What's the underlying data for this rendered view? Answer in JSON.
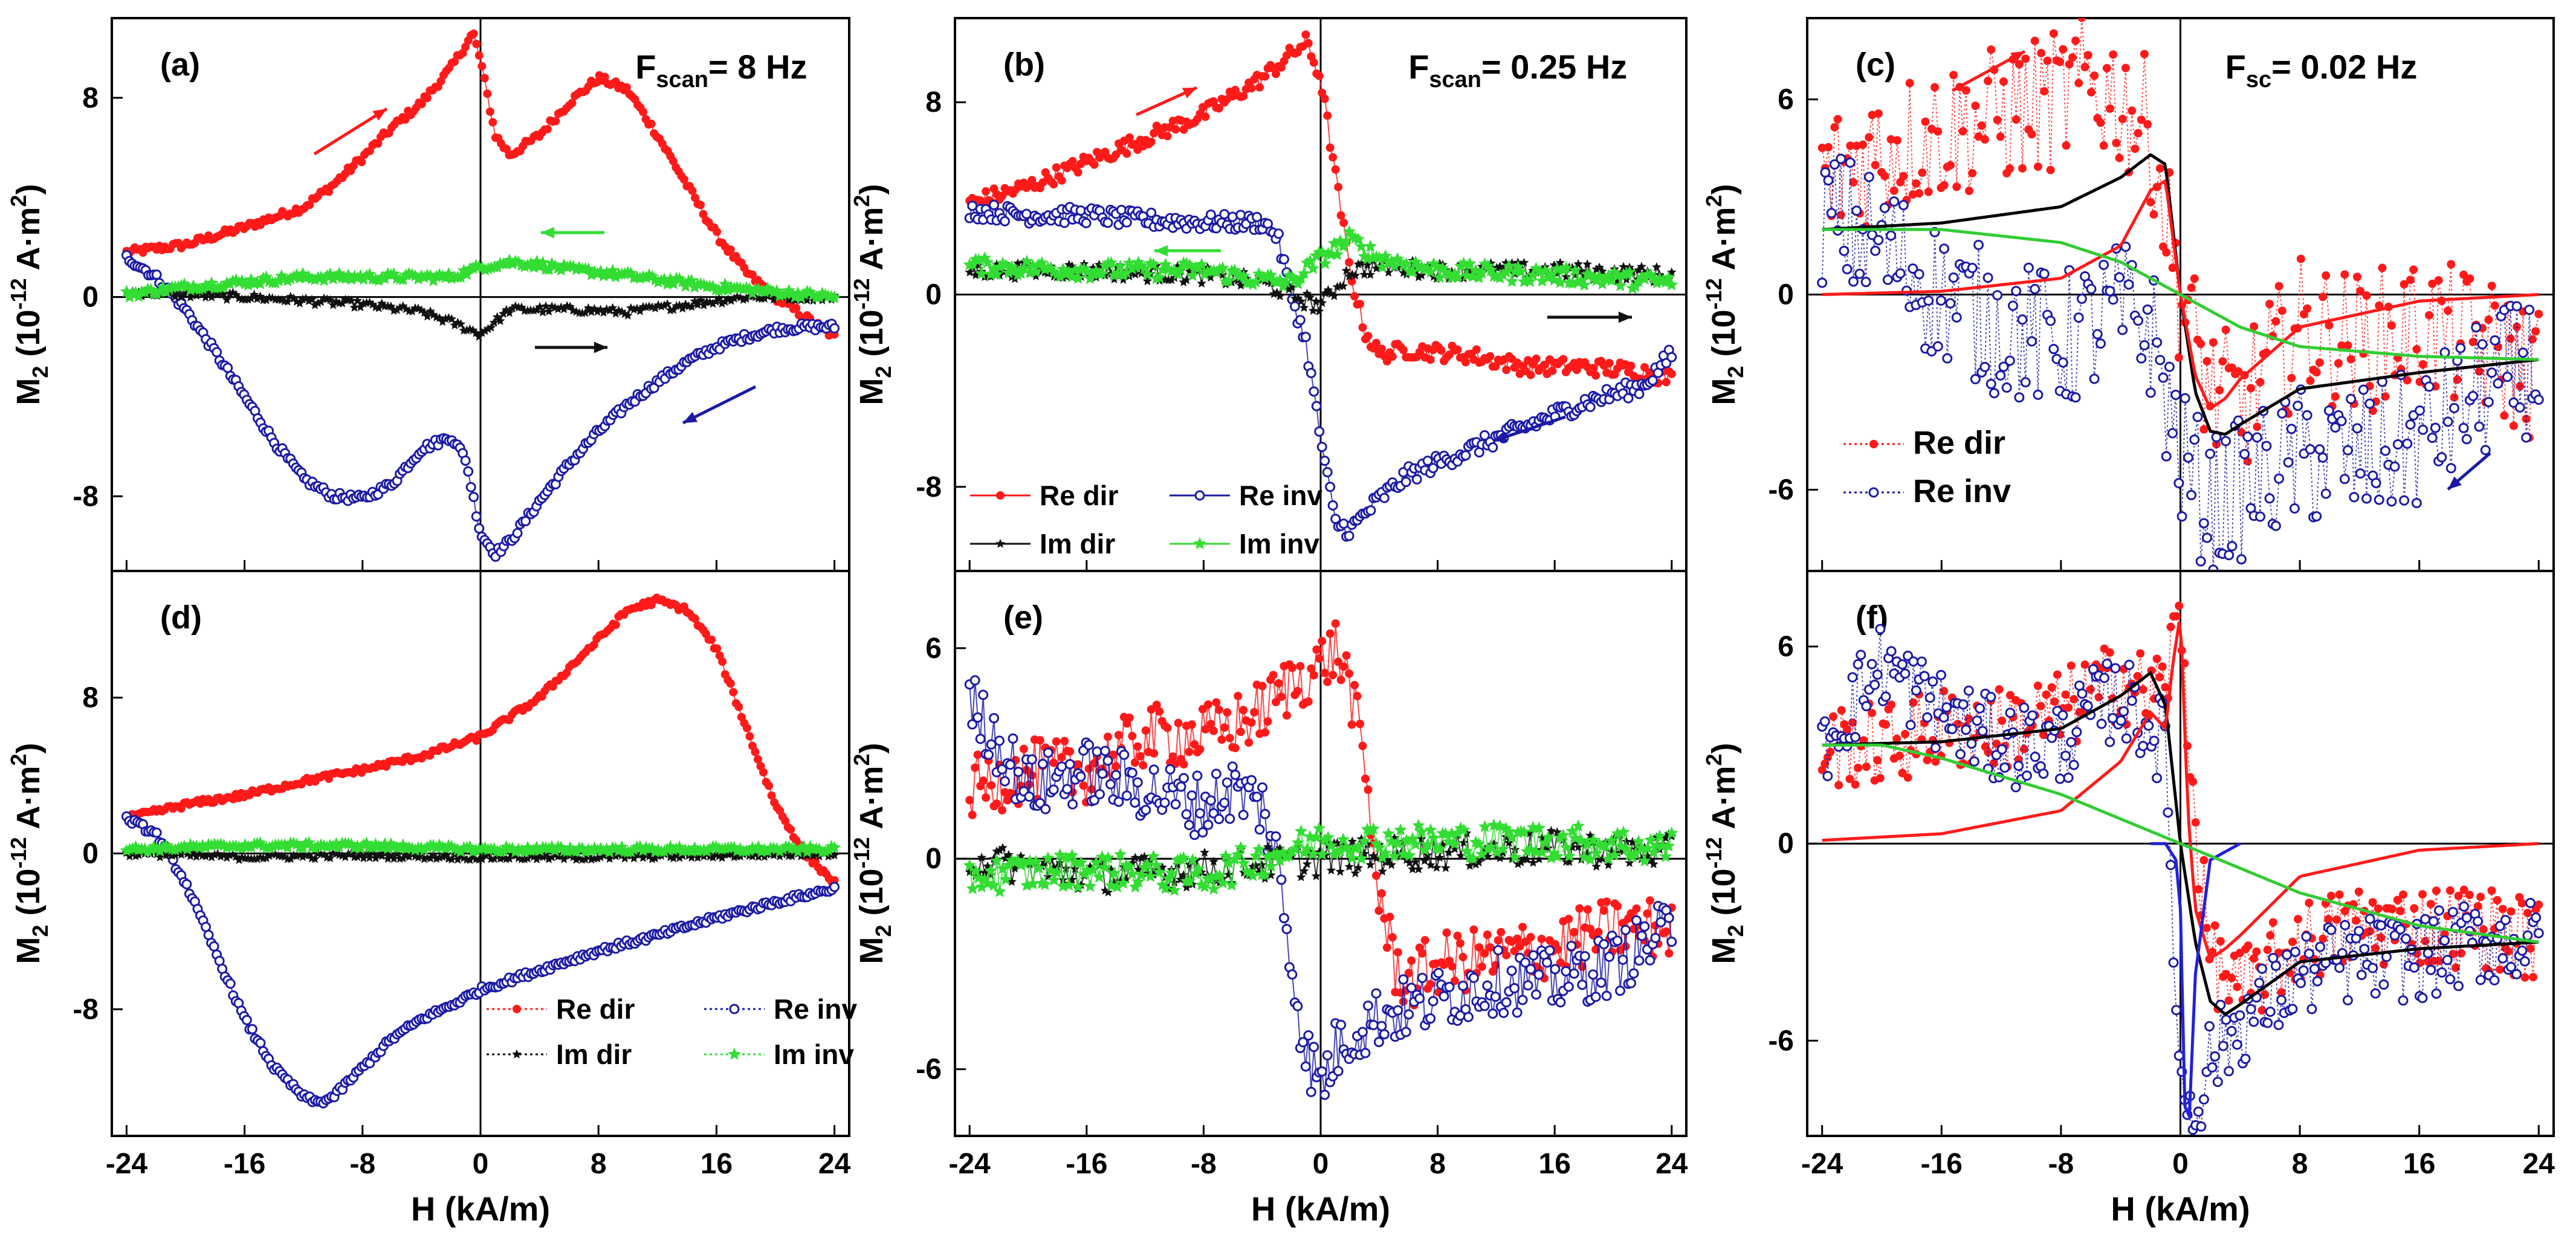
{
  "figure": {
    "xlabel": "H  (kA/m)",
    "x_ticks": [
      "-24",
      "-16",
      "-8",
      "0",
      "8",
      "16",
      "24"
    ],
    "panels": [
      {
        "id": "a",
        "label": "(a)",
        "freq_main": "F",
        "freq_sub": "scan",
        "freq_value": "= 8 Hz"
      },
      {
        "id": "b",
        "label": "(b)",
        "freq_main": "F",
        "freq_sub": "scan",
        "freq_value": "= 0.25 Hz"
      },
      {
        "id": "c",
        "label": "(c)",
        "freq_main": "F",
        "freq_sub": "sc",
        "freq_value": "= 0.02 Hz"
      },
      {
        "id": "d",
        "label": "(d)"
      },
      {
        "id": "e",
        "label": "(e)"
      },
      {
        "id": "f",
        "label": "(f)"
      }
    ],
    "ylabel_main": "M",
    "ylabel_sub": "2",
    "ylabel_unit_open": "(10",
    "ylabel_unit_exp": "-12",
    "ylabel_unit_close": " A·m",
    "ylabel_unit_sq": "2",
    "ylabel_unit_paren": ")",
    "legend_labels": {
      "re_dir": "Re dir",
      "re_inv": "Re inv",
      "im_dir": "Im dir",
      "im_inv": "Im inv"
    }
  },
  "colors": {
    "re_dir": "#ff1a1a",
    "re_inv": "#1a1aa6",
    "im_dir": "#111111",
    "im_inv": "#33dd33",
    "fit_black": "#000000",
    "fit_green": "#33cc33"
  },
  "chart_data": [
    {
      "panel": "a",
      "type": "scatter",
      "title": "F_scan = 8 Hz",
      "xlabel": "H (kA/m)",
      "ylabel": "M2 (10^-12 A·m^2)",
      "xlim": [
        -25,
        25
      ],
      "ylim": [
        -11,
        11.2
      ],
      "yticks": [
        -8,
        0,
        8
      ],
      "series": [
        {
          "name": "Re dir",
          "x": [
            -24,
            -20,
            -16,
            -12,
            -10,
            -8,
            -6,
            -4,
            -2,
            -0.5,
            0,
            1,
            2,
            4,
            6,
            8,
            10,
            12,
            14,
            16,
            18,
            20,
            22,
            24
          ],
          "y": [
            1.8,
            2.1,
            2.8,
            3.6,
            4.5,
            5.6,
            6.8,
            7.8,
            9.2,
            10.6,
            9.5,
            6.5,
            5.7,
            6.5,
            7.8,
            8.8,
            8.3,
            6.5,
            4.5,
            2.5,
            1.0,
            0.0,
            -0.8,
            -1.6
          ]
        },
        {
          "name": "Re inv",
          "x": [
            -24,
            -22,
            -20,
            -18,
            -16,
            -14,
            -12,
            -10,
            -8,
            -6,
            -4,
            -2,
            -1,
            0,
            1,
            2,
            4,
            6,
            8,
            10,
            12,
            14,
            16,
            18,
            20,
            22,
            24
          ],
          "y": [
            1.6,
            0.8,
            -0.5,
            -2.2,
            -4.0,
            -5.8,
            -7.3,
            -8.0,
            -8.1,
            -7.5,
            -6.1,
            -5.6,
            -6.5,
            -9.5,
            -10.3,
            -9.8,
            -8.2,
            -6.7,
            -5.4,
            -4.3,
            -3.4,
            -2.6,
            -2.0,
            -1.6,
            -1.3,
            -1.2,
            -1.2
          ]
        },
        {
          "name": "Im dir",
          "x": [
            -24,
            -16,
            -8,
            -4,
            -2,
            0,
            2,
            6,
            10,
            14,
            18,
            22,
            24
          ],
          "y": [
            0.2,
            0.0,
            -0.3,
            -0.6,
            -1.0,
            -1.5,
            -0.5,
            -0.5,
            -0.6,
            -0.3,
            0.0,
            0.0,
            0.0
          ]
        },
        {
          "name": "Im inv",
          "x": [
            -24,
            -20,
            -16,
            -12,
            -8,
            -4,
            -2,
            0,
            2,
            4,
            6,
            8,
            12,
            16,
            20,
            24
          ],
          "y": [
            0.1,
            0.4,
            0.6,
            0.8,
            0.8,
            0.8,
            0.8,
            1.2,
            1.4,
            1.3,
            1.1,
            1.0,
            0.7,
            0.4,
            0.2,
            0.0
          ]
        }
      ],
      "arrows": [
        "dir: up-right, red",
        "inv: left, green",
        "dir: right, black",
        "inv: down-left, blue"
      ]
    },
    {
      "panel": "b",
      "type": "scatter",
      "title": "F_scan = 0.25 Hz",
      "xlabel": "H (kA/m)",
      "ylabel": "M2 (10^-12 A·m^2)",
      "xlim": [
        -25,
        25
      ],
      "ylim": [
        -11.5,
        11.5
      ],
      "yticks": [
        -8,
        0,
        8
      ],
      "legend": [
        "Re dir",
        "Re inv",
        "Im dir",
        "Im inv"
      ],
      "series": [
        {
          "name": "Re dir",
          "x": [
            -24,
            -20,
            -16,
            -12,
            -8,
            -4,
            -2,
            -1,
            0,
            1,
            2,
            3,
            4,
            6,
            10,
            14,
            18,
            22,
            24
          ],
          "y": [
            3.8,
            4.5,
            5.5,
            6.5,
            7.5,
            9.0,
            10.0,
            10.5,
            9.0,
            5.0,
            1.0,
            -1.5,
            -2.5,
            -2.3,
            -2.5,
            -3.0,
            -3.0,
            -3.2,
            -3.5
          ]
        },
        {
          "name": "Re inv",
          "x": [
            -24,
            -20,
            -16,
            -12,
            -8,
            -6,
            -4,
            -3,
            -2,
            -1,
            0,
            1,
            2,
            4,
            6,
            10,
            14,
            18,
            22,
            24
          ],
          "y": [
            3.5,
            3.3,
            3.3,
            3.1,
            3.0,
            3.0,
            3.0,
            2.5,
            0.0,
            -2.0,
            -6.0,
            -9.5,
            -9.8,
            -8.5,
            -7.5,
            -6.5,
            -5.5,
            -4.5,
            -3.8,
            -2.5
          ]
        },
        {
          "name": "Im dir",
          "x": [
            -24,
            -16,
            -8,
            -4,
            -2,
            0,
            2,
            4,
            8,
            16,
            24
          ],
          "y": [
            1.0,
            1.0,
            0.8,
            0.5,
            0.0,
            -0.5,
            1.0,
            1.2,
            1.0,
            1.0,
            0.8
          ]
        },
        {
          "name": "Im inv",
          "x": [
            -24,
            -16,
            -8,
            -4,
            -2,
            0,
            2,
            4,
            8,
            16,
            24
          ],
          "y": [
            1.2,
            1.0,
            1.0,
            0.6,
            0.5,
            1.5,
            2.3,
            1.5,
            1.0,
            0.8,
            0.5
          ]
        }
      ]
    },
    {
      "panel": "c",
      "type": "scatter",
      "title": "F_sc = 0.02 Hz",
      "xlabel": "H (kA/m)",
      "ylabel": "M2 (10^-12 A·m^2)",
      "xlim": [
        -25,
        25
      ],
      "ylim": [
        -8.5,
        8.5
      ],
      "yticks": [
        -6,
        0,
        6
      ],
      "legend": [
        "Re dir",
        "Re inv"
      ],
      "series": [
        {
          "name": "Re dir",
          "x": [
            -24,
            -20,
            -16,
            -12,
            -8,
            -6,
            -4,
            -2,
            0,
            2,
            4,
            8,
            12,
            16,
            20,
            24
          ],
          "y": [
            3.5,
            4.5,
            5.0,
            5.5,
            6.0,
            6.5,
            6.0,
            5.0,
            0.0,
            -3.0,
            -3.5,
            -1.0,
            -1.5,
            -1.0,
            -1.5,
            -2.5
          ]
        },
        {
          "name": "Re inv",
          "x": [
            -24,
            -20,
            -16,
            -12,
            -8,
            -6,
            -4,
            -2,
            0,
            2,
            4,
            8,
            12,
            16,
            20,
            24
          ],
          "y": [
            2.5,
            1.5,
            0.0,
            -1.0,
            -1.5,
            -1.0,
            -0.5,
            -1.0,
            -5.0,
            -6.5,
            -6.0,
            -5.0,
            -5.0,
            -4.5,
            -3.0,
            -2.0
          ]
        }
      ],
      "fits": [
        {
          "name": "fit total",
          "x": [
            -24,
            -16,
            -8,
            -4,
            -2,
            -1,
            0,
            1,
            2,
            3,
            4,
            8,
            16,
            24
          ],
          "y": [
            2.0,
            2.2,
            2.7,
            3.6,
            4.3,
            4.0,
            0.0,
            -3.0,
            -4.2,
            -4.3,
            -4.0,
            -2.9,
            -2.4,
            -2.0
          ]
        },
        {
          "name": "fit red",
          "x": [
            -24,
            -16,
            -8,
            -4,
            -2,
            -1,
            0,
            1,
            2,
            3,
            4,
            8,
            16,
            24
          ],
          "y": [
            0.0,
            0.1,
            0.5,
            1.5,
            3.2,
            3.5,
            0.0,
            -2.5,
            -3.5,
            -3.2,
            -2.6,
            -1.0,
            -0.2,
            0.0
          ]
        },
        {
          "name": "fit green",
          "x": [
            -24,
            -16,
            -8,
            -4,
            0,
            4,
            8,
            16,
            24
          ],
          "y": [
            2.0,
            2.0,
            1.6,
            1.0,
            0.0,
            -1.0,
            -1.6,
            -1.9,
            -2.0
          ]
        }
      ]
    },
    {
      "panel": "d",
      "type": "scatter",
      "xlabel": "H (kA/m)",
      "ylabel": "M2 (10^-12 A·m^2)",
      "xlim": [
        -25,
        25
      ],
      "ylim": [
        -14.5,
        14.5
      ],
      "yticks": [
        -8,
        0,
        8
      ],
      "legend": [
        "Re dir",
        "Re inv",
        "Im dir",
        "Im inv"
      ],
      "series": [
        {
          "name": "Re dir",
          "x": [
            -24,
            -20,
            -16,
            -12,
            -8,
            -4,
            0,
            4,
            8,
            10,
            12,
            14,
            16,
            18,
            20,
            22,
            24
          ],
          "y": [
            1.8,
            2.5,
            3.0,
            3.7,
            4.3,
            5.0,
            6.0,
            8.0,
            11.0,
            12.5,
            13.0,
            12.5,
            10.5,
            6.5,
            2.5,
            0.0,
            -1.5
          ]
        },
        {
          "name": "Re inv",
          "x": [
            -24,
            -22,
            -20,
            -18,
            -16,
            -14,
            -12,
            -11,
            -10,
            -8,
            -6,
            -4,
            -2,
            0,
            4,
            8,
            12,
            16,
            20,
            24
          ],
          "y": [
            1.8,
            1.0,
            -1.5,
            -5.0,
            -8.5,
            -11.0,
            -12.5,
            -12.8,
            -12.5,
            -11.0,
            -9.5,
            -8.5,
            -7.8,
            -7.0,
            -6.0,
            -5.0,
            -4.2,
            -3.3,
            -2.5,
            -1.8
          ]
        },
        {
          "name": "Im dir",
          "x": [
            -24,
            -16,
            -8,
            0,
            8,
            16,
            24
          ],
          "y": [
            0.0,
            -0.2,
            -0.1,
            -0.2,
            -0.2,
            -0.1,
            0.0
          ]
        },
        {
          "name": "Im inv",
          "x": [
            -24,
            -16,
            -8,
            0,
            8,
            16,
            24
          ],
          "y": [
            0.2,
            0.4,
            0.4,
            0.2,
            0.2,
            0.2,
            0.2
          ]
        }
      ]
    },
    {
      "panel": "e",
      "type": "scatter",
      "xlabel": "H (kA/m)",
      "ylabel": "M2 (10^-12 A·m^2)",
      "xlim": [
        -25,
        25
      ],
      "ylim": [
        -7.9,
        8.2
      ],
      "yticks": [
        -6,
        0,
        6
      ],
      "series": [
        {
          "name": "Re dir",
          "x": [
            -24,
            -20,
            -16,
            -12,
            -8,
            -6,
            -4,
            -2,
            0,
            1,
            2,
            3,
            4,
            5,
            6,
            8,
            12,
            16,
            20,
            24
          ],
          "y": [
            2.0,
            2.5,
            2.5,
            3.5,
            3.5,
            3.8,
            4.2,
            5.0,
            5.5,
            6.0,
            5.0,
            2.5,
            -1.0,
            -3.0,
            -3.5,
            -3.0,
            -2.8,
            -2.5,
            -2.0,
            -2.0
          ]
        },
        {
          "name": "Re inv",
          "x": [
            -24,
            -20,
            -16,
            -12,
            -8,
            -6,
            -4,
            -3,
            -2,
            -1,
            0,
            1,
            2,
            4,
            8,
            12,
            16,
            20,
            24
          ],
          "y": [
            4.5,
            2.0,
            2.5,
            2.0,
            1.5,
            2.0,
            1.5,
            0.0,
            -3.0,
            -5.5,
            -6.5,
            -5.5,
            -5.0,
            -4.5,
            -4.0,
            -3.5,
            -3.5,
            -3.0,
            -2.0
          ]
        },
        {
          "name": "Im dir",
          "x": [
            -24,
            -16,
            -8,
            0,
            8,
            16,
            24
          ],
          "y": [
            0.0,
            -0.5,
            -0.3,
            0.0,
            0.2,
            0.3,
            0.2
          ]
        },
        {
          "name": "Im inv",
          "x": [
            -24,
            -16,
            -8,
            0,
            8,
            16,
            24
          ],
          "y": [
            -0.5,
            -0.3,
            -0.5,
            0.5,
            0.5,
            0.5,
            0.3
          ]
        }
      ]
    },
    {
      "panel": "f",
      "type": "scatter",
      "xlabel": "H (kA/m)",
      "ylabel": "M2 (10^-12 A·m^2)",
      "xlim": [
        -25,
        25
      ],
      "ylim": [
        -8.9,
        8.3
      ],
      "yticks": [
        -6,
        0,
        6
      ],
      "series": [
        {
          "name": "Re dir",
          "x": [
            -24,
            -20,
            -16,
            -12,
            -8,
            -6,
            -4,
            -2,
            -1,
            0,
            1,
            2,
            4,
            8,
            12,
            16,
            20,
            24
          ],
          "y": [
            3.0,
            3.0,
            3.5,
            3.5,
            4.0,
            4.5,
            5.0,
            4.5,
            5.0,
            7.0,
            0.5,
            -3.5,
            -4.5,
            -3.0,
            -2.5,
            -2.5,
            -2.5,
            -3.0
          ]
        },
        {
          "name": "Re inv",
          "x": [
            -24,
            -20,
            -16,
            -12,
            -8,
            -6,
            -4,
            -2,
            -1,
            0,
            1,
            2,
            4,
            8,
            12,
            16,
            20,
            24
          ],
          "y": [
            3.0,
            5.5,
            4.0,
            3.0,
            3.0,
            4.0,
            4.5,
            3.5,
            3.0,
            -7.5,
            -8.0,
            -6.5,
            -5.5,
            -4.0,
            -3.5,
            -3.5,
            -3.0,
            -3.0
          ]
        }
      ],
      "fits": [
        {
          "name": "fit total",
          "x": [
            -24,
            -16,
            -8,
            -4,
            -2,
            -1,
            0,
            1,
            2,
            3,
            4,
            8,
            16,
            24
          ],
          "y": [
            3.0,
            3.1,
            3.5,
            4.5,
            5.2,
            4.2,
            0.0,
            -3.0,
            -4.8,
            -5.2,
            -4.9,
            -3.6,
            -3.2,
            -3.0
          ]
        },
        {
          "name": "fit red",
          "x": [
            -24,
            -16,
            -8,
            -4,
            -2,
            -1,
            -0.5,
            0,
            0.5,
            1,
            2,
            3,
            4,
            8,
            16,
            24
          ],
          "y": [
            0.1,
            0.3,
            1.0,
            2.5,
            4.0,
            3.5,
            5.5,
            7.0,
            1.0,
            -2.0,
            -3.5,
            -3.2,
            -2.8,
            -1.0,
            -0.2,
            0.0
          ]
        },
        {
          "name": "fit blue",
          "x": [
            -2,
            -1,
            -0.3,
            0,
            0.3,
            0.6,
            1,
            2,
            4
          ],
          "y": [
            0.0,
            0.0,
            -0.5,
            -2.0,
            -8.0,
            -8.3,
            -4.0,
            -0.5,
            0.0
          ]
        },
        {
          "name": "fit green",
          "x": [
            -24,
            -20,
            -16,
            -8,
            0,
            8,
            16,
            24
          ],
          "y": [
            3.0,
            3.0,
            2.6,
            1.5,
            0.0,
            -1.5,
            -2.5,
            -3.0
          ]
        }
      ]
    }
  ]
}
